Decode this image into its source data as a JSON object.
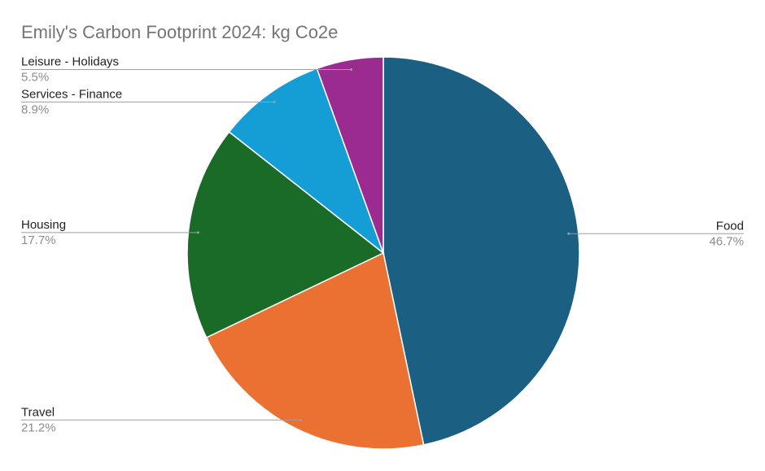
{
  "chart_data": {
    "type": "pie",
    "title": "Emily's Carbon Footprint 2024: kg Co2e",
    "start_angle_deg": 0,
    "direction": "clockwise",
    "slices": [
      {
        "label": "Food",
        "value": 46.7,
        "percent_label": "46.7%",
        "color": "#1b5f82",
        "label_side": "right"
      },
      {
        "label": "Travel",
        "value": 21.2,
        "percent_label": "21.2%",
        "color": "#ea7131",
        "label_side": "left"
      },
      {
        "label": "Housing",
        "value": 17.7,
        "percent_label": "17.7%",
        "color": "#1b6b28",
        "label_side": "left"
      },
      {
        "label": "Services - Finance",
        "value": 8.9,
        "percent_label": "8.9%",
        "color": "#159ed6",
        "label_side": "left"
      },
      {
        "label": "Leisure - Holidays",
        "value": 5.5,
        "percent_label": "5.5%",
        "color": "#9b2a91",
        "label_side": "left"
      }
    ]
  }
}
